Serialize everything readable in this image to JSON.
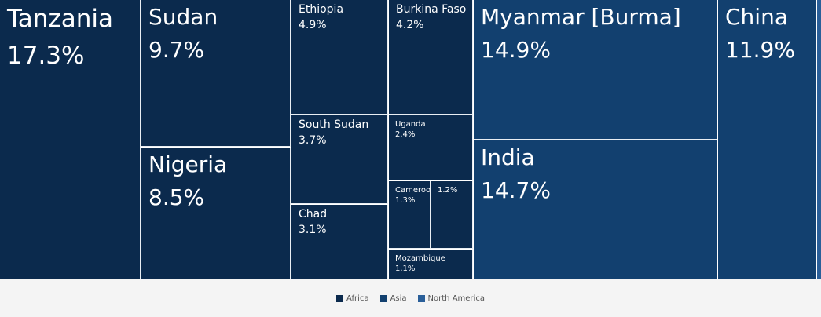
{
  "chart_data": {
    "type": "treemap",
    "colors": {
      "Africa": "#0b2a4d",
      "Asia": "#12406f",
      "North America": "#2a5f99"
    },
    "groups": [
      {
        "name": "Africa",
        "items": [
          {
            "name": "Tanzania",
            "value": 17.3,
            "label": "17.3%"
          },
          {
            "name": "Sudan",
            "value": 9.7,
            "label": "9.7%"
          },
          {
            "name": "Nigeria",
            "value": 8.5,
            "label": "8.5%"
          },
          {
            "name": "Ethiopia",
            "value": 4.9,
            "label": "4.9%"
          },
          {
            "name": "Burkina Faso",
            "value": 4.2,
            "label": "4.2%"
          },
          {
            "name": "South Sudan",
            "value": 3.7,
            "label": "3.7%"
          },
          {
            "name": "Chad",
            "value": 3.1,
            "label": "3.1%"
          },
          {
            "name": "Uganda",
            "value": 2.4,
            "label": "2.4%"
          },
          {
            "name": "Cameroo",
            "value": 1.3,
            "label": "1.3%"
          },
          {
            "name": "",
            "value": 1.2,
            "label": "1.2%"
          },
          {
            "name": "Mozambique",
            "value": 1.1,
            "label": "1.1%"
          }
        ]
      },
      {
        "name": "Asia",
        "items": [
          {
            "name": "Myanmar [Burma]",
            "value": 14.9,
            "label": "14.9%"
          },
          {
            "name": "India",
            "value": 14.7,
            "label": "14.7%"
          },
          {
            "name": "China",
            "value": 11.9,
            "label": "11.9%"
          }
        ]
      },
      {
        "name": "North America",
        "items": [
          {
            "name": "",
            "value": 0.3,
            "label": ""
          }
        ]
      }
    ],
    "legend": [
      {
        "name": "Africa",
        "color": "#0b2a4d"
      },
      {
        "name": "Asia",
        "color": "#12406f"
      },
      {
        "name": "North America",
        "color": "#2a5f99"
      }
    ]
  }
}
